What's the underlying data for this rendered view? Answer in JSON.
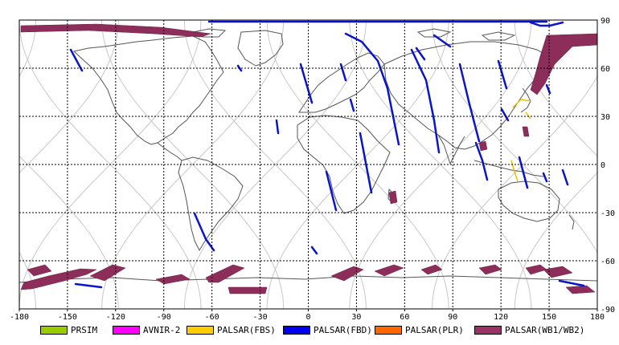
{
  "map": {
    "lon_ticks": [
      "-180",
      "-150",
      "-120",
      "-90",
      "-60",
      "-30",
      "0",
      "30",
      "60",
      "90",
      "120",
      "150",
      "180"
    ],
    "lat_ticks_right": [
      "90",
      "60",
      "30",
      "0",
      "-30",
      "-60",
      "-90"
    ],
    "lon_range": [
      -180,
      180
    ],
    "lat_range": [
      -90,
      90
    ],
    "grid": "dashed",
    "colors": {
      "coast": "#555555",
      "orbit": "#c8c8c8",
      "grid": "#000000",
      "fbd": "#0a14c8",
      "wb": "#8c2d5a",
      "fbs": "#e8c200"
    }
  },
  "legend": [
    {
      "label": "PRSIM",
      "color": "#99cc00"
    },
    {
      "label": "AVNIR-2",
      "color": "#ff00ff"
    },
    {
      "label": "PALSAR(FBS)",
      "color": "#ffcc00"
    },
    {
      "label": "PALSAR(FBD)",
      "color": "#0000ee"
    },
    {
      "label": "PALSAR(PLR)",
      "color": "#ff6600"
    },
    {
      "label": "PALSAR(WB1/WB2)",
      "color": "#993366"
    }
  ]
}
